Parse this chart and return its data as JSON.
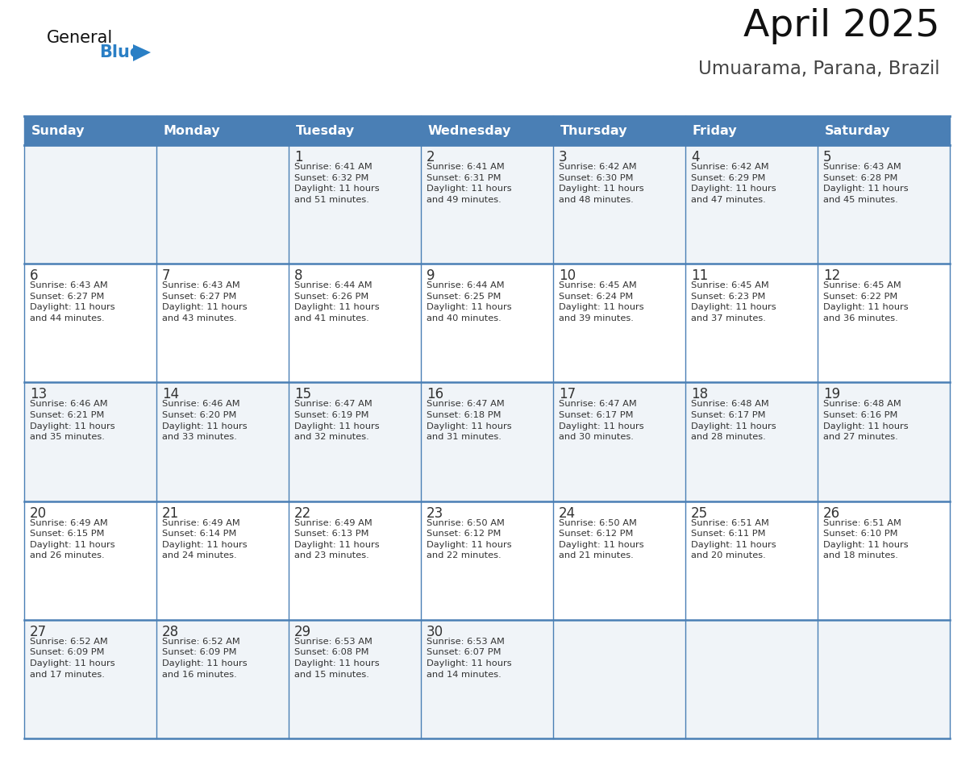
{
  "title": "April 2025",
  "subtitle": "Umuarama, Parana, Brazil",
  "days_of_week": [
    "Sunday",
    "Monday",
    "Tuesday",
    "Wednesday",
    "Thursday",
    "Friday",
    "Saturday"
  ],
  "header_bg": "#4a7fb5",
  "header_text": "#ffffff",
  "row_bg_light": "#f0f4f8",
  "row_bg_white": "#ffffff",
  "border_color": "#4a7fb5",
  "day_number_color": "#333333",
  "info_text_color": "#333333",
  "title_color": "#111111",
  "subtitle_color": "#444444",
  "calendar_data": [
    [
      {
        "day": null,
        "info": ""
      },
      {
        "day": null,
        "info": ""
      },
      {
        "day": 1,
        "info": "Sunrise: 6:41 AM\nSunset: 6:32 PM\nDaylight: 11 hours\nand 51 minutes."
      },
      {
        "day": 2,
        "info": "Sunrise: 6:41 AM\nSunset: 6:31 PM\nDaylight: 11 hours\nand 49 minutes."
      },
      {
        "day": 3,
        "info": "Sunrise: 6:42 AM\nSunset: 6:30 PM\nDaylight: 11 hours\nand 48 minutes."
      },
      {
        "day": 4,
        "info": "Sunrise: 6:42 AM\nSunset: 6:29 PM\nDaylight: 11 hours\nand 47 minutes."
      },
      {
        "day": 5,
        "info": "Sunrise: 6:43 AM\nSunset: 6:28 PM\nDaylight: 11 hours\nand 45 minutes."
      }
    ],
    [
      {
        "day": 6,
        "info": "Sunrise: 6:43 AM\nSunset: 6:27 PM\nDaylight: 11 hours\nand 44 minutes."
      },
      {
        "day": 7,
        "info": "Sunrise: 6:43 AM\nSunset: 6:27 PM\nDaylight: 11 hours\nand 43 minutes."
      },
      {
        "day": 8,
        "info": "Sunrise: 6:44 AM\nSunset: 6:26 PM\nDaylight: 11 hours\nand 41 minutes."
      },
      {
        "day": 9,
        "info": "Sunrise: 6:44 AM\nSunset: 6:25 PM\nDaylight: 11 hours\nand 40 minutes."
      },
      {
        "day": 10,
        "info": "Sunrise: 6:45 AM\nSunset: 6:24 PM\nDaylight: 11 hours\nand 39 minutes."
      },
      {
        "day": 11,
        "info": "Sunrise: 6:45 AM\nSunset: 6:23 PM\nDaylight: 11 hours\nand 37 minutes."
      },
      {
        "day": 12,
        "info": "Sunrise: 6:45 AM\nSunset: 6:22 PM\nDaylight: 11 hours\nand 36 minutes."
      }
    ],
    [
      {
        "day": 13,
        "info": "Sunrise: 6:46 AM\nSunset: 6:21 PM\nDaylight: 11 hours\nand 35 minutes."
      },
      {
        "day": 14,
        "info": "Sunrise: 6:46 AM\nSunset: 6:20 PM\nDaylight: 11 hours\nand 33 minutes."
      },
      {
        "day": 15,
        "info": "Sunrise: 6:47 AM\nSunset: 6:19 PM\nDaylight: 11 hours\nand 32 minutes."
      },
      {
        "day": 16,
        "info": "Sunrise: 6:47 AM\nSunset: 6:18 PM\nDaylight: 11 hours\nand 31 minutes."
      },
      {
        "day": 17,
        "info": "Sunrise: 6:47 AM\nSunset: 6:17 PM\nDaylight: 11 hours\nand 30 minutes."
      },
      {
        "day": 18,
        "info": "Sunrise: 6:48 AM\nSunset: 6:17 PM\nDaylight: 11 hours\nand 28 minutes."
      },
      {
        "day": 19,
        "info": "Sunrise: 6:48 AM\nSunset: 6:16 PM\nDaylight: 11 hours\nand 27 minutes."
      }
    ],
    [
      {
        "day": 20,
        "info": "Sunrise: 6:49 AM\nSunset: 6:15 PM\nDaylight: 11 hours\nand 26 minutes."
      },
      {
        "day": 21,
        "info": "Sunrise: 6:49 AM\nSunset: 6:14 PM\nDaylight: 11 hours\nand 24 minutes."
      },
      {
        "day": 22,
        "info": "Sunrise: 6:49 AM\nSunset: 6:13 PM\nDaylight: 11 hours\nand 23 minutes."
      },
      {
        "day": 23,
        "info": "Sunrise: 6:50 AM\nSunset: 6:12 PM\nDaylight: 11 hours\nand 22 minutes."
      },
      {
        "day": 24,
        "info": "Sunrise: 6:50 AM\nSunset: 6:12 PM\nDaylight: 11 hours\nand 21 minutes."
      },
      {
        "day": 25,
        "info": "Sunrise: 6:51 AM\nSunset: 6:11 PM\nDaylight: 11 hours\nand 20 minutes."
      },
      {
        "day": 26,
        "info": "Sunrise: 6:51 AM\nSunset: 6:10 PM\nDaylight: 11 hours\nand 18 minutes."
      }
    ],
    [
      {
        "day": 27,
        "info": "Sunrise: 6:52 AM\nSunset: 6:09 PM\nDaylight: 11 hours\nand 17 minutes."
      },
      {
        "day": 28,
        "info": "Sunrise: 6:52 AM\nSunset: 6:09 PM\nDaylight: 11 hours\nand 16 minutes."
      },
      {
        "day": 29,
        "info": "Sunrise: 6:53 AM\nSunset: 6:08 PM\nDaylight: 11 hours\nand 15 minutes."
      },
      {
        "day": 30,
        "info": "Sunrise: 6:53 AM\nSunset: 6:07 PM\nDaylight: 11 hours\nand 14 minutes."
      },
      {
        "day": null,
        "info": ""
      },
      {
        "day": null,
        "info": ""
      },
      {
        "day": null,
        "info": ""
      }
    ]
  ],
  "logo_general_color": "#111111",
  "logo_blue_color": "#2a7fc5",
  "logo_triangle_color": "#2a7fc5"
}
